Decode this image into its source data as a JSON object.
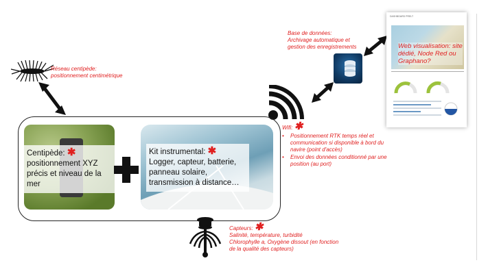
{
  "centipede": {
    "title": "Réseau centipède:",
    "subtitle": "positionnement centimétrique"
  },
  "database": {
    "line1": "Base de données:",
    "line2": "Archivage automatique et",
    "line3": "gestion des enregistrements"
  },
  "dashboard": {
    "small_header": "DASHBOARD PRELT",
    "web_label": "Web visualisation: site dédié, Node Red ou Graphano?"
  },
  "wifi": {
    "title": "Wifi:",
    "bullets": [
      "Positionnement RTK temps réel et communication si disponible à bord du navire (point d'accès)",
      "Envoi des données conditionné par une position (au port)"
    ]
  },
  "left_box": {
    "label": "Centipède:",
    "text": "positionnement XYZ précis et niveau de la mer"
  },
  "right_box": {
    "label": "Kit instrumental:",
    "text": "Logger, capteur, batterie, panneau solaire, transmission à distance…"
  },
  "sensors": {
    "title": "Capteurs:",
    "line1": "Salinité, température, turbidité",
    "line2": "Chlorophylle a, Oxygène dissout (en fonction",
    "line3": "de la qualité des capteurs)"
  },
  "colors": {
    "accent_red": "#e02020",
    "arrow": "#111111"
  },
  "icons": [
    "centipede-icon",
    "wifi-icon",
    "database-icon",
    "sensor-icon",
    "plus-icon"
  ]
}
